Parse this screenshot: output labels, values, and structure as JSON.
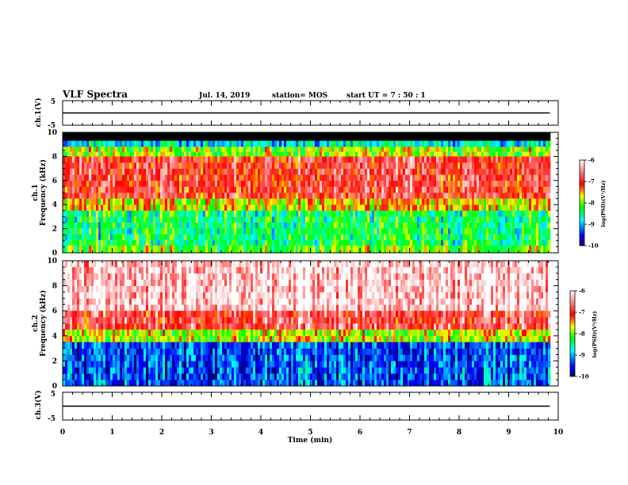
{
  "header": {
    "title": "VLF Spectra",
    "date": "Jul. 14, 2019",
    "station": "station= MOS",
    "start": "start  UT =   7 : 50 : 1"
  },
  "chart_data": [
    {
      "type": "line",
      "name": "ch1-voltage",
      "ylabel": "ch.1(V)",
      "ylim": [
        -5,
        5
      ],
      "yticks": [
        "5",
        "-5"
      ],
      "xlim": [
        0,
        10
      ],
      "x": [
        0,
        9.83
      ],
      "y": [
        0,
        0
      ],
      "color": "#000000"
    },
    {
      "type": "heatmap",
      "name": "ch1-spectrogram",
      "ylabel_top": "ch.1",
      "ylabel": "Frequency (kHz)",
      "ylim": [
        0,
        10
      ],
      "yticks": [
        "0",
        "2",
        "4",
        "6",
        "8",
        "10"
      ],
      "xlim": [
        0,
        10
      ],
      "data_end_min": 9.83,
      "colorbar": {
        "label": "log(PSD)(V²/Hz)",
        "range": [
          -10,
          -6
        ],
        "ticks": [
          "-6",
          "-7",
          "-8",
          "-9",
          "-10"
        ],
        "colors": [
          "#000066",
          "#0000ff",
          "#00ffff",
          "#00ff00",
          "#ffff00",
          "#ff0000",
          "#ffffff"
        ]
      },
      "bands_khz": [
        {
          "from": 9.3,
          "to": 10.0,
          "level": -99
        },
        {
          "from": 8.8,
          "to": 9.3,
          "level": -8.8
        },
        {
          "from": 8.0,
          "to": 8.8,
          "level": -7.9
        },
        {
          "from": 4.5,
          "to": 8.0,
          "level": -6.9
        },
        {
          "from": 3.5,
          "to": 4.5,
          "level": -7.6
        },
        {
          "from": 0.6,
          "to": 3.5,
          "level": -8.4
        },
        {
          "from": 0.0,
          "to": 0.6,
          "level": -8.0
        }
      ]
    },
    {
      "type": "heatmap",
      "name": "ch2-spectrogram",
      "ylabel_top": "ch.2",
      "ylabel": "Frequency (kHz)",
      "ylim": [
        0,
        10
      ],
      "yticks": [
        "0",
        "2",
        "4",
        "6",
        "8",
        "10"
      ],
      "xlim": [
        0,
        10
      ],
      "data_end_min": 9.83,
      "colorbar": {
        "label": "log(PSD)(V²/Hz)",
        "range": [
          -10,
          -6
        ],
        "ticks": [
          "-6",
          "-7",
          "-8",
          "-9",
          "-10"
        ],
        "colors": [
          "#000066",
          "#0000ff",
          "#00ffff",
          "#00ff00",
          "#ffff00",
          "#ff0000",
          "#ffffff"
        ]
      },
      "bands_khz": [
        {
          "from": 6.0,
          "to": 10.0,
          "level": -6.2
        },
        {
          "from": 4.5,
          "to": 6.0,
          "level": -6.8
        },
        {
          "from": 3.5,
          "to": 4.5,
          "level": -7.8
        },
        {
          "from": 0.0,
          "to": 3.5,
          "level": -9.3
        }
      ]
    },
    {
      "type": "line",
      "name": "ch3-voltage",
      "ylabel": "ch.3(V)",
      "ylim": [
        -5,
        5
      ],
      "yticks": [
        "5",
        "-5"
      ],
      "xlim": [
        0,
        10
      ],
      "x": [
        0,
        9.83
      ],
      "y": [
        0,
        0
      ],
      "color": "#000000",
      "xlabel": "Time (min)",
      "xticks": [
        "0",
        "1",
        "2",
        "3",
        "4",
        "5",
        "6",
        "7",
        "8",
        "9",
        "10"
      ]
    }
  ]
}
